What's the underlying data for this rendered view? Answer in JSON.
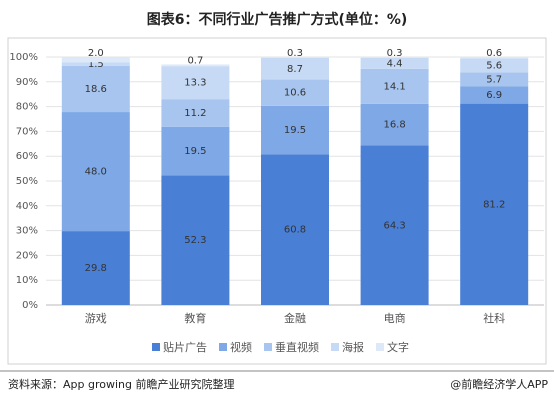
{
  "chart_data": {
    "type": "stacked_bar",
    "title": "图表6：不同行业广告推广方式(单位：%)",
    "categories": [
      "游戏",
      "教育",
      "金融",
      "电商",
      "社科"
    ],
    "series": [
      {
        "name": "贴片广告",
        "color": "#4a7fd6",
        "values": [
          29.8,
          52.3,
          60.8,
          64.3,
          81.2
        ]
      },
      {
        "name": "视频",
        "color": "#7ea8e6",
        "values": [
          48.0,
          19.5,
          19.5,
          16.8,
          6.9
        ],
        "value_labels": [
          "48.0",
          "19.5",
          "19.5",
          "16.8",
          "6.9"
        ]
      },
      {
        "name": "垂直视频",
        "color": "#a8c5ef",
        "values": [
          18.6,
          11.2,
          10.6,
          14.1,
          5.7
        ]
      },
      {
        "name": "海报",
        "color": "#c6daf5",
        "values": [
          1.5,
          13.3,
          8.7,
          4.4,
          5.6
        ]
      },
      {
        "name": "文字",
        "color": "#dde9f9",
        "values": [
          2.0,
          0.7,
          0.3,
          0.3,
          0.6
        ],
        "value_labels": [
          "2.0",
          "0.7",
          "0.3",
          "0.3",
          "0.6"
        ]
      }
    ],
    "ylim": [
      0,
      100
    ],
    "yticks": [
      {
        "value": 0,
        "label": "0%"
      },
      {
        "value": 10,
        "label": "10%"
      },
      {
        "value": 20,
        "label": "20%"
      },
      {
        "value": 30,
        "label": "30%"
      },
      {
        "value": 40,
        "label": "40%"
      },
      {
        "value": 50,
        "label": "50%"
      },
      {
        "value": 60,
        "label": "60%"
      },
      {
        "value": 70,
        "label": "70%"
      },
      {
        "value": 80,
        "label": "80%"
      },
      {
        "value": 90,
        "label": "90%"
      },
      {
        "value": 100,
        "label": "100%"
      }
    ],
    "grid": true,
    "legend": "bottom"
  },
  "footer": {
    "source": "资料来源：App growing 前瞻产业研究院整理",
    "credit": "@前瞻经济学人APP"
  }
}
